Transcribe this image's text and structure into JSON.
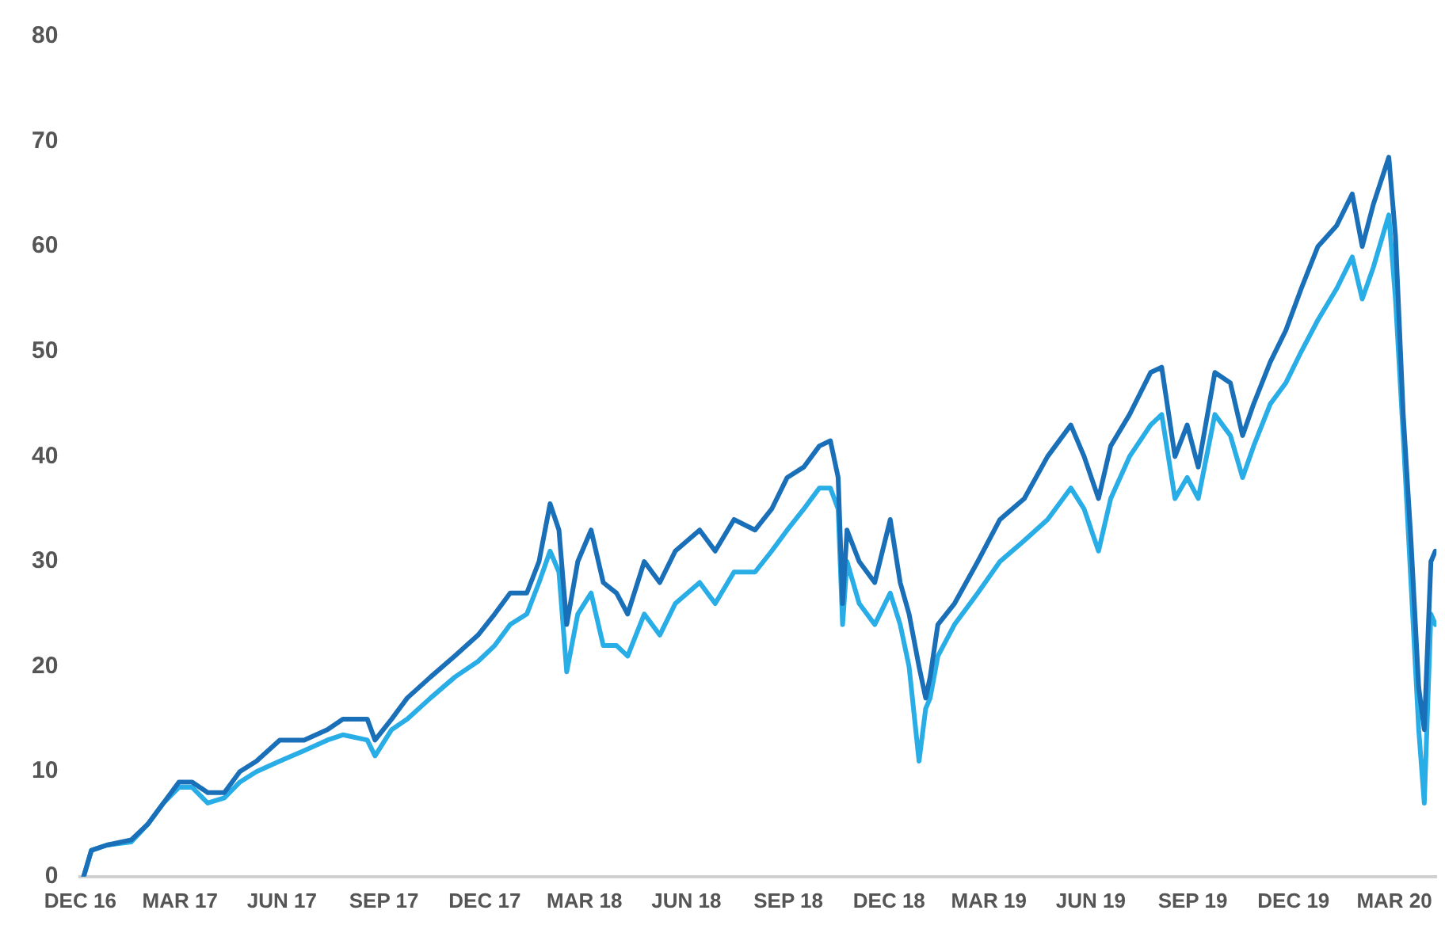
{
  "chart_data": {
    "type": "line",
    "x": [
      "2016-12-04",
      "2016-12-11",
      "2016-12-25",
      "2017-01-16",
      "2017-01-31",
      "2017-02-14",
      "2017-02-28",
      "2017-03-12",
      "2017-03-26",
      "2017-04-10",
      "2017-04-24",
      "2017-05-09",
      "2017-05-30",
      "2017-06-21",
      "2017-07-12",
      "2017-07-26",
      "2017-08-17",
      "2017-08-24",
      "2017-09-08",
      "2017-09-22",
      "2017-10-13",
      "2017-11-04",
      "2017-11-25",
      "2017-12-10",
      "2017-12-24",
      "2018-01-08",
      "2018-01-19",
      "2018-01-29",
      "2018-02-06",
      "2018-02-13",
      "2018-02-23",
      "2018-03-07",
      "2018-03-18",
      "2018-03-30",
      "2018-04-09",
      "2018-04-24",
      "2018-05-08",
      "2018-05-22",
      "2018-06-13",
      "2018-06-27",
      "2018-07-14",
      "2018-08-02",
      "2018-08-17",
      "2018-08-31",
      "2018-09-15",
      "2018-09-29",
      "2018-10-09",
      "2018-10-16",
      "2018-10-20",
      "2018-10-24",
      "2018-11-04",
      "2018-11-18",
      "2018-12-02",
      "2018-12-11",
      "2018-12-19",
      "2018-12-28",
      "2019-01-03",
      "2019-01-07",
      "2019-01-14",
      "2019-01-29",
      "2019-02-19",
      "2019-03-11",
      "2019-04-02",
      "2019-04-23",
      "2019-05-07",
      "2019-05-14",
      "2019-05-26",
      "2019-06-08",
      "2019-06-19",
      "2019-07-06",
      "2019-07-25",
      "2019-08-04",
      "2019-08-16",
      "2019-08-27",
      "2019-09-06",
      "2019-09-21",
      "2019-10-05",
      "2019-10-16",
      "2019-10-26",
      "2019-11-10",
      "2019-11-24",
      "2019-12-08",
      "2019-12-23",
      "2020-01-09",
      "2020-01-23",
      "2020-02-01",
      "2020-02-11",
      "2020-02-25",
      "2020-03-02",
      "2020-03-09",
      "2020-03-16",
      "2020-03-23",
      "2020-03-28",
      "2020-04-03",
      "2020-04-07"
    ],
    "series": [
      {
        "color": "#1a70b8",
        "values": [
          0,
          2.5,
          3,
          3.5,
          5,
          7,
          9,
          9,
          8,
          8,
          10,
          11,
          13,
          13,
          14,
          15,
          15,
          13,
          15,
          17,
          19,
          21,
          23,
          25,
          27,
          27,
          30,
          35.5,
          33,
          24,
          30,
          33,
          28,
          27,
          25,
          30,
          28,
          31,
          33,
          31,
          34,
          33,
          35,
          38,
          39,
          41,
          41.5,
          38,
          26,
          33,
          30,
          28,
          34,
          28,
          25,
          20,
          17,
          19,
          24,
          26,
          30,
          34,
          36,
          40,
          42,
          43,
          40,
          36,
          41,
          44,
          48,
          48.5,
          40,
          43,
          39,
          48,
          47,
          42,
          45,
          49,
          52,
          56,
          60,
          62,
          65,
          60,
          64,
          68.5,
          61,
          44,
          32,
          18,
          14,
          30,
          31
        ]
      },
      {
        "color": "#29ade6",
        "values": [
          0,
          2.5,
          3,
          3.3,
          5,
          7,
          8.5,
          8.5,
          7,
          7.5,
          9,
          10,
          11,
          12,
          13,
          13.5,
          13,
          11.5,
          14,
          15,
          17,
          19,
          20.5,
          22,
          24,
          25,
          28,
          31,
          29,
          19.5,
          25,
          27,
          22,
          22,
          21,
          25,
          23,
          26,
          28,
          26,
          29,
          29,
          31,
          33,
          35,
          37,
          37,
          35,
          24,
          30,
          26,
          24,
          27,
          24,
          20,
          11,
          16,
          17,
          21,
          24,
          27,
          30,
          32,
          34,
          36,
          37,
          35,
          31,
          36,
          40,
          43,
          44,
          36,
          38,
          36,
          44,
          42,
          38,
          41,
          45,
          47,
          50,
          53,
          56,
          59,
          55,
          58,
          63,
          55,
          42,
          28,
          14,
          7,
          25,
          24
        ]
      }
    ],
    "xlim": [
      "2016-12-01",
      "2020-04-08"
    ],
    "xticks": [
      {
        "value": "2016-12",
        "label": "DEC 16"
      },
      {
        "value": "2017-03",
        "label": "MAR 17"
      },
      {
        "value": "2017-06",
        "label": "JUN 17"
      },
      {
        "value": "2017-09",
        "label": "SEP 17"
      },
      {
        "value": "2017-12",
        "label": "DEC 17"
      },
      {
        "value": "2018-03",
        "label": "MAR 18"
      },
      {
        "value": "2018-06",
        "label": "JUN 18"
      },
      {
        "value": "2018-09",
        "label": "SEP 18"
      },
      {
        "value": "2018-12",
        "label": "DEC 18"
      },
      {
        "value": "2019-03",
        "label": "MAR 19"
      },
      {
        "value": "2019-06",
        "label": "JUN 19"
      },
      {
        "value": "2019-09",
        "label": "SEP 19"
      },
      {
        "value": "2019-12",
        "label": "DEC 19"
      },
      {
        "value": "2020-03",
        "label": "MAR 20"
      }
    ],
    "ylim": [
      0,
      80
    ],
    "yticks": [
      0,
      10,
      20,
      30,
      40,
      50,
      60,
      70,
      80
    ],
    "grid": false,
    "legend": false
  }
}
